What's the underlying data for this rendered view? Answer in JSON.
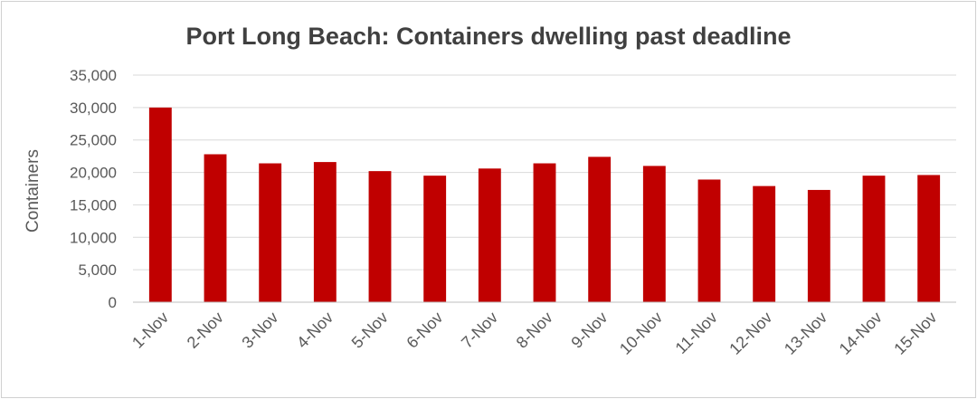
{
  "chart_data": {
    "type": "bar",
    "title": "Port Long Beach: Containers dwelling past deadline",
    "ylabel": "Containers",
    "xlabel": "",
    "categories": [
      "1-Nov",
      "2-Nov",
      "3-Nov",
      "4-Nov",
      "5-Nov",
      "6-Nov",
      "7-Nov",
      "8-Nov",
      "9-Nov",
      "10-Nov",
      "11-Nov",
      "12-Nov",
      "13-Nov",
      "14-Nov",
      "15-Nov"
    ],
    "values": [
      30000,
      22800,
      21400,
      21600,
      20200,
      19500,
      20600,
      21400,
      22400,
      21000,
      18900,
      17900,
      17300,
      19500,
      19600
    ],
    "ylim": [
      0,
      35000
    ],
    "yticks": [
      0,
      5000,
      10000,
      15000,
      20000,
      25000,
      30000,
      35000
    ],
    "ytick_labels": [
      "0",
      "5,000",
      "10,000",
      "15,000",
      "20,000",
      "25,000",
      "30,000",
      "35,000"
    ],
    "grid": true,
    "legend": "none",
    "colors": {
      "bar": "#c00000",
      "grid": "#d9d9d9",
      "axis": "#bfbfbf",
      "text": "#595959",
      "title": "#404040"
    }
  }
}
